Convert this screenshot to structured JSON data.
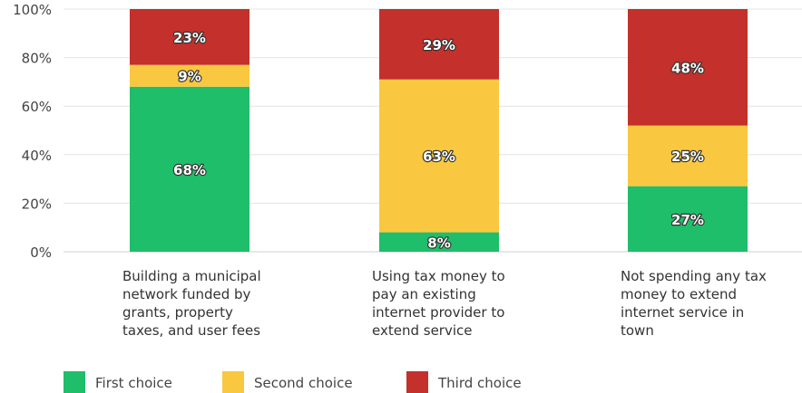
{
  "chart_data": {
    "type": "bar",
    "stacked": true,
    "categories": [
      [
        "Building a municipal",
        "network funded by",
        "grants, property",
        "taxes, and user fees"
      ],
      [
        "Using tax money to",
        "pay an existing",
        "internet provider to",
        "extend service"
      ],
      [
        "Not spending any tax",
        "money to extend",
        "internet service in",
        "town"
      ]
    ],
    "series": [
      {
        "name": "First choice",
        "color": "#1fbe6a",
        "values": [
          68,
          8,
          27
        ]
      },
      {
        "name": "Second choice",
        "color": "#f9c840",
        "values": [
          9,
          63,
          25
        ]
      },
      {
        "name": "Third choice",
        "color": "#c4302b",
        "values": [
          23,
          29,
          48
        ]
      }
    ],
    "yticks": [
      "0%",
      "20%",
      "40%",
      "60%",
      "80%",
      "100%"
    ],
    "ylim": [
      0,
      100
    ],
    "grid": true,
    "legend": "bottom-left",
    "label_suffix": "%"
  }
}
